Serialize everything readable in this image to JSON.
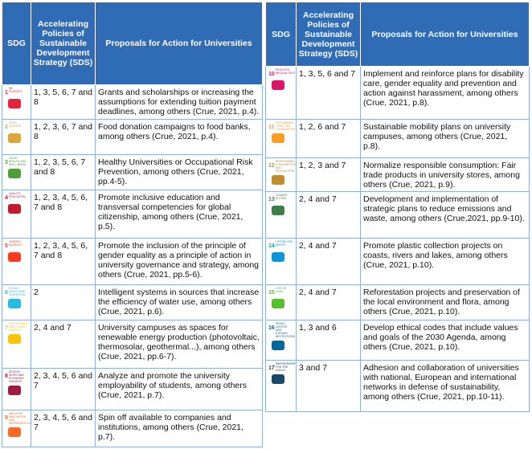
{
  "tables": [
    {
      "headers": [
        "SDG",
        "Accelerating Policies of Sustainable Development Strategy (SDS)",
        "Proposals for Action for Universities"
      ],
      "rows": [
        {
          "sdg": "1",
          "label": "NO POVERTY",
          "color": "#e5243b",
          "sds": "1, 3, 5, 6, 7 and 8",
          "proposal": "Grants and scholarships or increasing the assumptions for extending tuition payment deadlines, among others (Crue, 2021, p.4)."
        },
        {
          "sdg": "2",
          "label": "ZERO HUNGER",
          "color": "#dda63a",
          "sds": "1, 2, 3, 6, 7 and 8",
          "proposal": "Food donation campaigns to food banks, among others (Crue, 2021, p.4)."
        },
        {
          "sdg": "3",
          "label": "GOOD HEALTH AND WELL-BEING",
          "color": "#4c9f38",
          "sds": "1, 2, 3, 5, 6, 7 and 8",
          "proposal": "Healthy Universities or Occupational Risk Prevention, among others (Crue, 2021, pp.4-5)."
        },
        {
          "sdg": "4",
          "label": "QUALITY EDUCATION",
          "color": "#c5192d",
          "sds": "1, 2, 3, 4, 5, 6, 7 and 8",
          "proposal": "Promote inclusive education and transversal competencies for global citizenship, among others (Crue, 2021, p.5)."
        },
        {
          "sdg": "5",
          "label": "GENDER EQUALITY",
          "color": "#ff3a21",
          "sds": "1, 2, 3, 4, 5, 6, 7 and 8",
          "proposal": "Promote the inclusion of the principle of gender equality as a principle of action in university governance and strategy, among others (Crue, 2021, pp.5-6)."
        },
        {
          "sdg": "6",
          "label": "CLEAN WATER AND SANITATION",
          "color": "#26bde2",
          "sds": "2",
          "proposal": "Intelligent systems in sources that increase the efficiency of water use, among others (Crue, 2021, p.6)."
        },
        {
          "sdg": "7",
          "label": "AFFORDABLE AND CLEAN ENERGY",
          "color": "#fcc30b",
          "sds": "2, 4 and 7",
          "proposal": "University campuses as spaces for renewable energy production (photovoltaic, thermosolar, geothermal...), among others (Crue, 2021, pp.6-7)."
        },
        {
          "sdg": "8",
          "label": "DECENT WORK AND ECONOMIC GROWTH",
          "color": "#a21942",
          "sds": "2, 3, 4, 5, 6 and 7",
          "proposal": "Analyze and promote the university employability of students, among others (Crue, 2021, p.7)."
        },
        {
          "sdg": "9",
          "label": "INDUSTRY, INNOVATION AND INFRASTRUCTURE",
          "color": "#fd6925",
          "sds": "2, 3, 4, 5, 6 and 7",
          "proposal": "Spin off available to companies and institutions, among others (Crue, 2021, p.7)."
        }
      ]
    },
    {
      "headers": [
        "SDG",
        "Accelerating Policies of Sustainable Development Strategy (SDS)",
        "Proposals for Action for Universities"
      ],
      "rows": [
        {
          "sdg": "10",
          "label": "REDUCED INEQUALITIES",
          "color": "#dd1367",
          "sds": "1, 3, 5, 6 and 7",
          "proposal": "Implement and reinforce plans for disability care, gender equality and prevention and action against harassment, among others (Crue, 2021, p.8)."
        },
        {
          "sdg": "11",
          "label": "SUSTAINABLE CITIES AND COMMUNITIES",
          "color": "#fd9d24",
          "sds": "1, 2, 6 and 7",
          "proposal": "Sustainable mobility plans on university campuses, among others (Crue, 2021, p.8)."
        },
        {
          "sdg": "12",
          "label": "RESPONSIBLE CONSUMPTION AND PRODUCTION",
          "color": "#bf8b2e",
          "sds": "1, 2, 3 and 7",
          "proposal": "Normalize responsible consumption: Fair trade products in university stores, among others (Crue, 2021, p.9)."
        },
        {
          "sdg": "13",
          "label": "CLIMATE ACTION",
          "color": "#3f7e44",
          "sds": "2, 4 and 7",
          "proposal": "Development and implementation of strategic plans to reduce emissions and waste, among others (Crue,2021, pp.9-10)."
        },
        {
          "sdg": "14",
          "label": "LIFE BELOW WATER",
          "color": "#0a97d9",
          "sds": "2, 4 and 7",
          "proposal": "Promote plastic collection projects on coasts, rivers and lakes, among others (Crue, 2021, p.10)."
        },
        {
          "sdg": "15",
          "label": "LIFE ON LAND",
          "color": "#56c02b",
          "sds": "2, 4 and 7",
          "proposal": "Reforestation projects and preservation of the local environment and flora, among others (Crue, 2021, p.10)."
        },
        {
          "sdg": "16",
          "label": "PEACE, JUSTICE AND STRONG INSTITUTIONS",
          "color": "#00689d",
          "sds": "1, 3 and 6",
          "proposal": "Develop ethical codes that include values and goals of the 2030 Agenda, among others (Crue, 2021, p.10)."
        },
        {
          "sdg": "17",
          "label": "PARTNERSHIPS FOR THE GOALS",
          "color": "#19486a",
          "sds": "3 and 7",
          "proposal": "Adhesion and collaboration of universities with national, European and international networks in defense of sustainability, among others (Crue, 2021, pp.10-11)."
        }
      ]
    }
  ]
}
